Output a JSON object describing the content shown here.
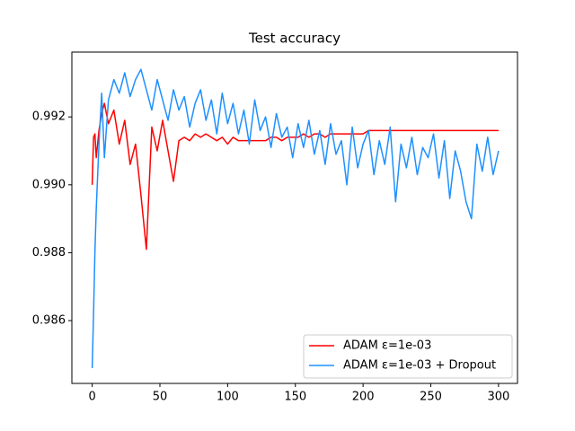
{
  "chart_data": {
    "type": "line",
    "title": "Test accuracy",
    "x": [
      0,
      1,
      2,
      3,
      5,
      7,
      9,
      12,
      16,
      20,
      24,
      28,
      32,
      36,
      40,
      44,
      48,
      52,
      56,
      60,
      64,
      68,
      72,
      76,
      80,
      84,
      88,
      92,
      96,
      100,
      104,
      108,
      112,
      116,
      120,
      124,
      128,
      132,
      136,
      140,
      144,
      148,
      152,
      156,
      160,
      164,
      168,
      172,
      176,
      180,
      184,
      188,
      192,
      196,
      200,
      204,
      208,
      212,
      216,
      220,
      224,
      228,
      232,
      236,
      240,
      244,
      248,
      252,
      256,
      260,
      264,
      268,
      272,
      276,
      280,
      284,
      288,
      292,
      296,
      300
    ],
    "series": [
      {
        "name": "ADAM ε=1e-03",
        "color": "#ff0000",
        "values": [
          0.99,
          0.9914,
          0.9915,
          0.9908,
          0.9916,
          0.9921,
          0.9924,
          0.9918,
          0.9922,
          0.9912,
          0.9919,
          0.9906,
          0.9912,
          0.9897,
          0.9881,
          0.9917,
          0.991,
          0.9919,
          0.991,
          0.9901,
          0.9913,
          0.9914,
          0.9913,
          0.9915,
          0.9914,
          0.9915,
          0.9914,
          0.9913,
          0.9914,
          0.9912,
          0.9914,
          0.9913,
          0.9913,
          0.9913,
          0.9913,
          0.9913,
          0.9913,
          0.9914,
          0.9914,
          0.9913,
          0.9914,
          0.9914,
          0.9914,
          0.9915,
          0.9914,
          0.9915,
          0.9915,
          0.9914,
          0.9915,
          0.9915,
          0.9915,
          0.9915,
          0.9915,
          0.9915,
          0.9915,
          0.9916,
          0.9916,
          0.9916,
          0.9916,
          0.9916,
          0.9916,
          0.9916,
          0.9916,
          0.9916,
          0.9916,
          0.9916,
          0.9916,
          0.9916,
          0.9916,
          0.9916,
          0.9916,
          0.9916,
          0.9916,
          0.9916,
          0.9916,
          0.9916,
          0.9916,
          0.9916,
          0.9916,
          0.9916
        ]
      },
      {
        "name": "ADAM ε=1e-03 + Dropout",
        "color": "#1e90ff",
        "values": [
          0.9846,
          0.9862,
          0.988,
          0.9893,
          0.9912,
          0.9927,
          0.9908,
          0.9925,
          0.9931,
          0.9927,
          0.9933,
          0.9926,
          0.9931,
          0.9934,
          0.9928,
          0.9922,
          0.9931,
          0.9925,
          0.9919,
          0.9928,
          0.9922,
          0.9926,
          0.9917,
          0.9924,
          0.9928,
          0.9919,
          0.9925,
          0.9915,
          0.9927,
          0.9918,
          0.9924,
          0.9915,
          0.9922,
          0.9912,
          0.9925,
          0.9916,
          0.992,
          0.9911,
          0.9921,
          0.9914,
          0.9917,
          0.9908,
          0.9918,
          0.9911,
          0.9919,
          0.9909,
          0.9916,
          0.9906,
          0.9918,
          0.9909,
          0.9913,
          0.99,
          0.9917,
          0.9905,
          0.9912,
          0.9916,
          0.9903,
          0.9913,
          0.9906,
          0.9917,
          0.9895,
          0.9912,
          0.9905,
          0.9914,
          0.9903,
          0.9911,
          0.9908,
          0.9915,
          0.9902,
          0.9913,
          0.9896,
          0.991,
          0.9904,
          0.9895,
          0.989,
          0.9912,
          0.9904,
          0.9914,
          0.9903,
          0.991
        ]
      }
    ],
    "xlim": [
      -15,
      314
    ],
    "ylim": [
      0.98415,
      0.99391
    ],
    "xticks": [
      0,
      50,
      100,
      150,
      200,
      250,
      300
    ],
    "yticks": [
      0.986,
      0.988,
      {
        "value": 0.99,
        "label": "0.990"
      },
      0.992
    ],
    "legend": "lower right"
  }
}
